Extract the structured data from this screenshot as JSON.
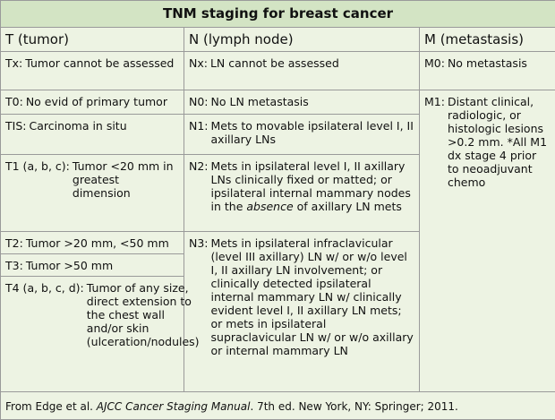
{
  "title": "TNM staging for breast cancer",
  "headers": [
    "T (tumor)",
    "N (lymph node)",
    "M (metastasis)"
  ],
  "tumor": [
    {
      "label": "Tx:",
      "text": "Tumor cannot be assessed"
    },
    {
      "label": "T0:",
      "text": "No evid of primary tumor"
    },
    {
      "label": "TIS:",
      "text": "Carcinoma in situ"
    },
    {
      "label": "T1 (a, b, c):",
      "text": "Tumor <20 mm in greatest dimension"
    },
    {
      "label": "T2:",
      "text": "Tumor >20 mm, <50 mm"
    },
    {
      "label": "T3:",
      "text": "Tumor >50 mm"
    },
    {
      "label": "T4 (a, b, c, d):",
      "text": "Tumor of any size, direct extension to the chest wall and/or skin (ulceration/nodules)"
    }
  ],
  "node": [
    {
      "label": "Nx:",
      "text": "LN cannot be assessed"
    },
    {
      "label": "N0:",
      "text": "No LN metastasis"
    },
    {
      "label": "N1:",
      "text": "Mets to movable ipsilateral level I, II axillary LNs"
    },
    {
      "label": "N2:",
      "text": [
        "Mets in ipsilateral level I, II axillary LNs clinically fixed or matted; or ipsilateral internal mammary nodes in the ",
        "absence",
        " of axillary LN mets"
      ]
    },
    {
      "label": "N3:",
      "text": "Mets in ipsilateral infraclavicular (level III axillary) LN w/ or w/o level I, II axillary LN involvement; or clinically detected ipsilateral internal mammary LN w/ clinically evident level I, II axillary LN mets; or mets in ipsilateral supraclavicular LN w/ or w/o axillary or internal mammary LN"
    }
  ],
  "metastasis": [
    {
      "label": "M0:",
      "text": "No metastasis"
    },
    {
      "label": "M1:",
      "text": "Distant clinical, radiologic, or histologic lesions >0.2 mm. *All M1 dx stage 4 prior to neoadjuvant chemo"
    }
  ],
  "source": [
    "From Edge et al. ",
    "AJCC Cancer Staging Manual",
    ". 7th ed. New York, NY: Springer; 2011."
  ]
}
